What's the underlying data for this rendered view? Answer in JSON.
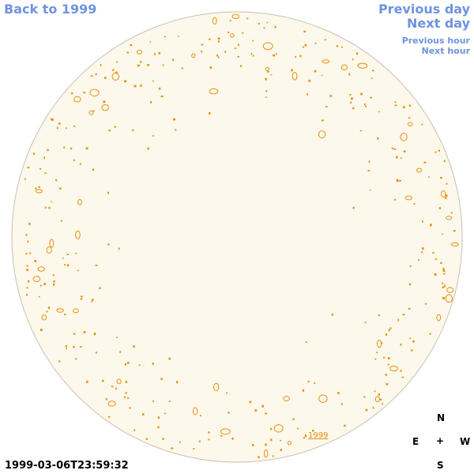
{
  "nav": {
    "back": "Back to 1999",
    "previous_day": "Previous day",
    "next_day": "Next day",
    "previous_hour": "Previous hour",
    "next_hour": "Next hour"
  },
  "compass": {
    "north": "N",
    "east": "E",
    "center": "+",
    "west": "W",
    "south": "S"
  },
  "timestamp": "1999-03-06T23:59:32",
  "year_link": "1999"
}
